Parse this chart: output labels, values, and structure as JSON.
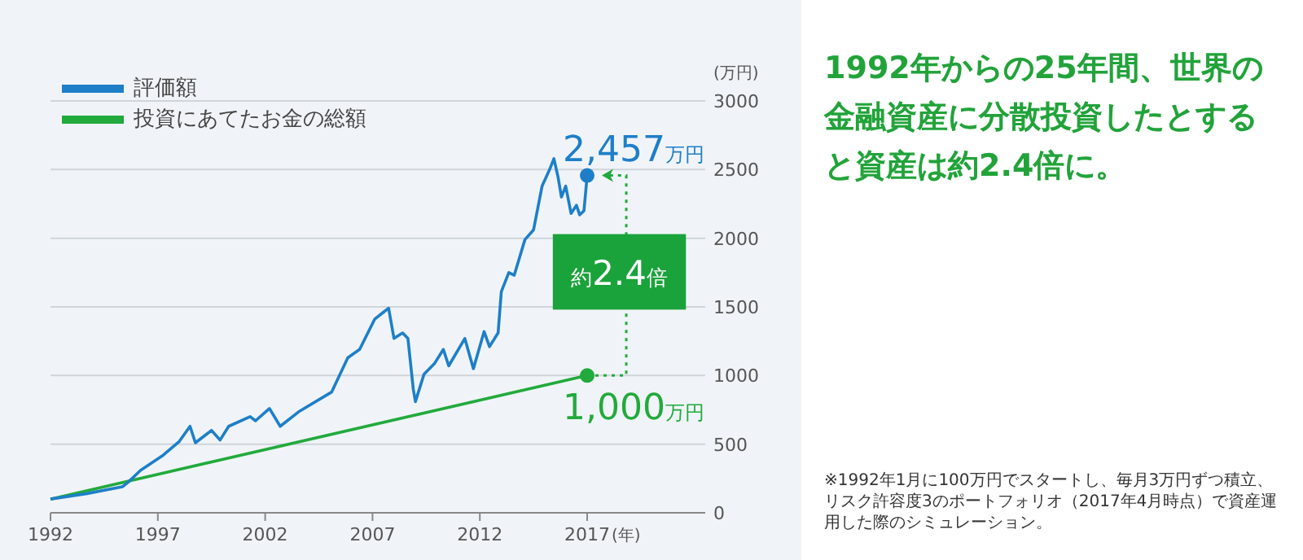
{
  "chart_data": {
    "type": "line",
    "title": "1992年からの25年間、世界の金融資産に分散投資したとすると資産は約2.4倍に。",
    "ylabel": "(万円)",
    "xlabel": "(年)",
    "xlim": [
      1992,
      2022.5
    ],
    "xticks": [
      1992,
      1997,
      2002,
      2007,
      2012,
      2017
    ],
    "ylim": [
      0,
      3000
    ],
    "yticks": [
      0,
      500,
      1000,
      1500,
      2000,
      2500,
      3000
    ],
    "grid": "y",
    "legend": "top left",
    "line_style": "solid",
    "series": [
      {
        "name": "評価額",
        "color": "#1e7fc8",
        "x": [
          1992.0,
          1993.7,
          1995.35,
          1995.6,
          1996.2,
          1997.25,
          1998.0,
          1998.5,
          1998.75,
          1999.5,
          1999.9,
          2000.3,
          2001.3,
          2001.55,
          2002.2,
          2002.7,
          2003.6,
          2005.1,
          2005.85,
          2006.4,
          2007.1,
          2007.5,
          2007.75,
          2008.0,
          2008.4,
          2008.65,
          2008.9,
          2009.0,
          2009.4,
          2009.9,
          2010.3,
          2010.55,
          2011.3,
          2011.7,
          2012.2,
          2012.45,
          2012.85,
          2013.0,
          2013.35,
          2013.6,
          2014.1,
          2014.5,
          2014.9,
          2015.25,
          2015.45,
          2015.65,
          2015.8,
          2016.0,
          2016.25,
          2016.5,
          2016.65,
          2016.85,
          2017.0
        ],
        "values": [
          100,
          140,
          190,
          220,
          310,
          420,
          520,
          630,
          510,
          600,
          530,
          630,
          700,
          670,
          760,
          630,
          740,
          880,
          1130,
          1190,
          1410,
          1460,
          1490,
          1270,
          1310,
          1270,
          900,
          810,
          1010,
          1090,
          1190,
          1070,
          1270,
          1050,
          1320,
          1210,
          1310,
          1610,
          1750,
          1730,
          1990,
          2060,
          2380,
          2500,
          2580,
          2440,
          2300,
          2380,
          2180,
          2240,
          2170,
          2200,
          2457
        ]
      },
      {
        "name": "投資にあてたお金の総額",
        "color": "#22aa3c",
        "x": [
          1992,
          2017
        ],
        "values": [
          100,
          1000
        ]
      }
    ],
    "annotations": [
      {
        "text": "2,457万円",
        "x": 2017,
        "y": 2457
      },
      {
        "text": "1,000万円",
        "x": 2017,
        "y": 1000
      },
      "約2.4倍",
      "※1992年1月に100万円でスタートし、毎月3万円ずつ積立、リスク許容度3のポートフォリオ（2017年4月時点）で資産運用した際のシミュレーション。"
    ]
  }
}
